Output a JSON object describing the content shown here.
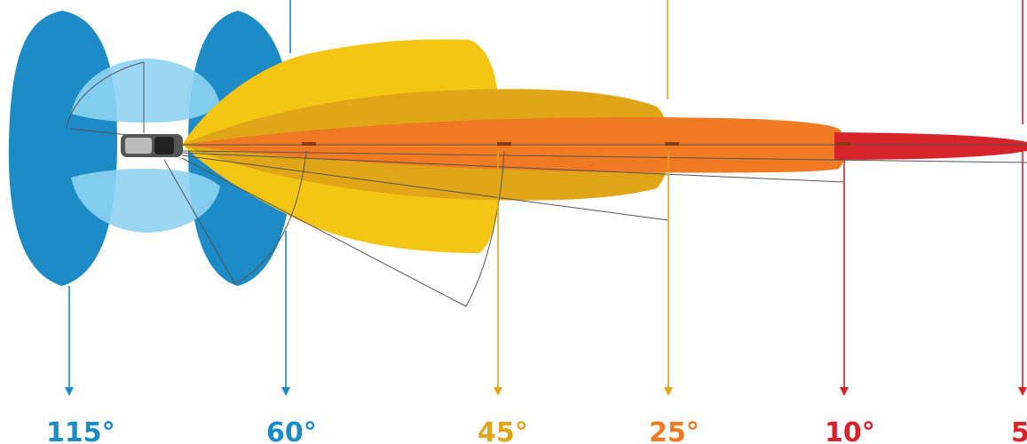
{
  "labels": [
    "115°",
    "60°",
    "45°",
    "25°",
    "10°",
    "5"
  ]
}
